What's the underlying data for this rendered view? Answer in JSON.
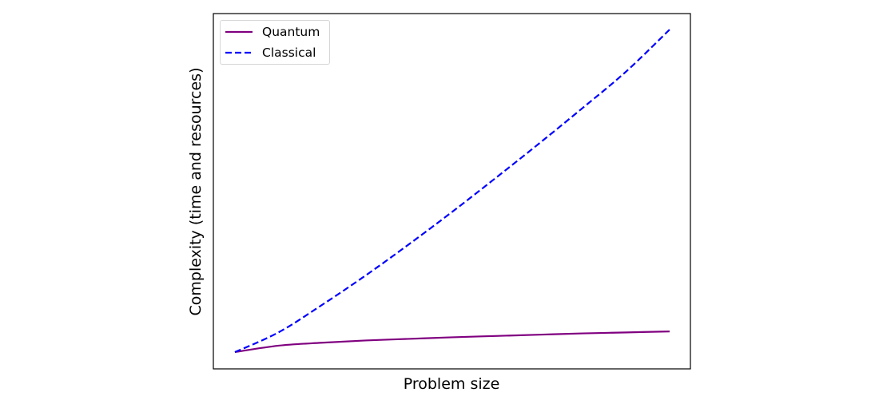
{
  "chart_data": {
    "type": "line",
    "title": "",
    "xlabel": "Problem size",
    "ylabel": "Complexity (time and resources)",
    "xticks": [],
    "yticks": [],
    "grid": false,
    "legend_position": "upper left",
    "x": [
      0,
      0.1,
      0.2,
      0.3,
      0.4,
      0.5,
      0.6,
      0.7,
      0.8,
      0.9,
      1.0
    ],
    "series": [
      {
        "name": "Quantum",
        "style": "solid",
        "color": "#800080",
        "values": [
          0,
          0.02,
          0.029,
          0.036,
          0.041,
          0.046,
          0.05,
          0.054,
          0.058,
          0.061,
          0.064
        ]
      },
      {
        "name": "Classical",
        "style": "dashed",
        "color": "#0000ff",
        "values": [
          0,
          0.061,
          0.146,
          0.237,
          0.334,
          0.435,
          0.54,
          0.647,
          0.757,
          0.87,
          1.0
        ]
      }
    ],
    "xlim": [
      -0.05,
      1.05
    ],
    "ylim": [
      -0.05,
      1.05
    ]
  },
  "legend": {
    "items": [
      {
        "label": "Quantum",
        "color": "#800080",
        "style": "solid"
      },
      {
        "label": "Classical",
        "color": "#0000ff",
        "style": "dashed"
      }
    ]
  }
}
